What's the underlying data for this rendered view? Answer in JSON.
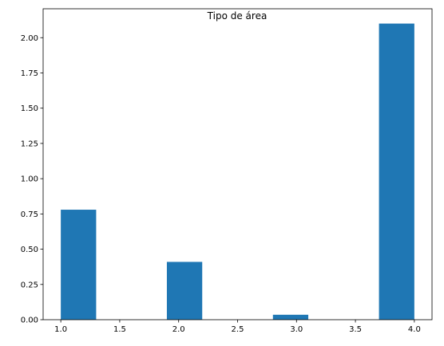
{
  "chart_data": {
    "type": "bar",
    "title": "Tipo de área",
    "xlabel": "",
    "ylabel": "",
    "bins": [
      {
        "x0": 1.0,
        "x1": 1.3,
        "value": 0.78
      },
      {
        "x0": 1.3,
        "x1": 1.6,
        "value": 0
      },
      {
        "x0": 1.6,
        "x1": 1.9,
        "value": 0
      },
      {
        "x0": 1.9,
        "x1": 2.2,
        "value": 0.41
      },
      {
        "x0": 2.2,
        "x1": 2.5,
        "value": 0
      },
      {
        "x0": 2.5,
        "x1": 2.8,
        "value": 0
      },
      {
        "x0": 2.8,
        "x1": 3.1,
        "value": 0.035
      },
      {
        "x0": 3.1,
        "x1": 3.4,
        "value": 0
      },
      {
        "x0": 3.4,
        "x1": 3.7,
        "value": 0
      },
      {
        "x0": 3.7,
        "x1": 4.0,
        "value": 2.1
      }
    ],
    "xlim": [
      0.85,
      4.15
    ],
    "ylim": [
      0,
      2.205
    ],
    "xticks": [
      1.0,
      1.5,
      2.0,
      2.5,
      3.0,
      3.5,
      4.0
    ],
    "xtick_labels": [
      "1.0",
      "1.5",
      "2.0",
      "2.5",
      "3.0",
      "3.5",
      "4.0"
    ],
    "yticks": [
      0,
      0.25,
      0.5,
      0.75,
      1.0,
      1.25,
      1.5,
      1.75,
      2.0
    ],
    "ytick_labels": [
      "0.00",
      "0.25",
      "0.50",
      "0.75",
      "1.00",
      "1.25",
      "1.50",
      "1.75",
      "2.00"
    ],
    "bar_color": "#1f77b4",
    "grid": false,
    "legend": "none"
  }
}
